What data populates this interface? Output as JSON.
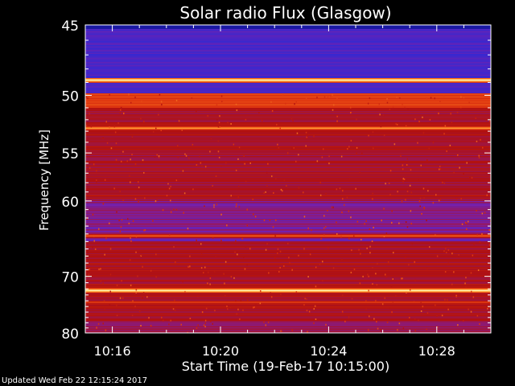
{
  "chart_data": {
    "type": "heatmap",
    "title": "Solar radio Flux (Glasgow)",
    "xlabel": "Start Time (19-Feb-17 10:15:00)",
    "ylabel": "Frequency [MHz]",
    "x_ticks": [
      "10:16",
      "10:20",
      "10:24",
      "10:28"
    ],
    "x_tick_minutes": [
      1,
      5,
      9,
      13
    ],
    "xlim_minutes": [
      0,
      15
    ],
    "y_ticks": [
      45,
      50,
      55,
      60,
      70,
      80
    ],
    "ylim": [
      45,
      80
    ],
    "y_scale": "reciprocal",
    "grid": false,
    "colormap": [
      "#0a0a70",
      "#2a2ad8",
      "#7a1fa8",
      "#b01010",
      "#e23a10",
      "#ff9a30",
      "#ffffc0"
    ],
    "features": [
      {
        "label": "bright emission band",
        "freq_mhz": 48.8,
        "intensity": 1.0
      },
      {
        "label": "bright emission band",
        "freq_mhz": 52.7,
        "intensity": 0.85
      },
      {
        "label": "bright emission band",
        "freq_mhz": 64.2,
        "intensity": 0.75
      },
      {
        "label": "bright emission band",
        "freq_mhz": 72.2,
        "intensity": 1.0
      },
      {
        "label": "bright emission band",
        "freq_mhz": 74.2,
        "intensity": 0.7
      }
    ]
  },
  "footer": {
    "updated": "Updated Wed Feb 22 12:15:24 2017"
  }
}
